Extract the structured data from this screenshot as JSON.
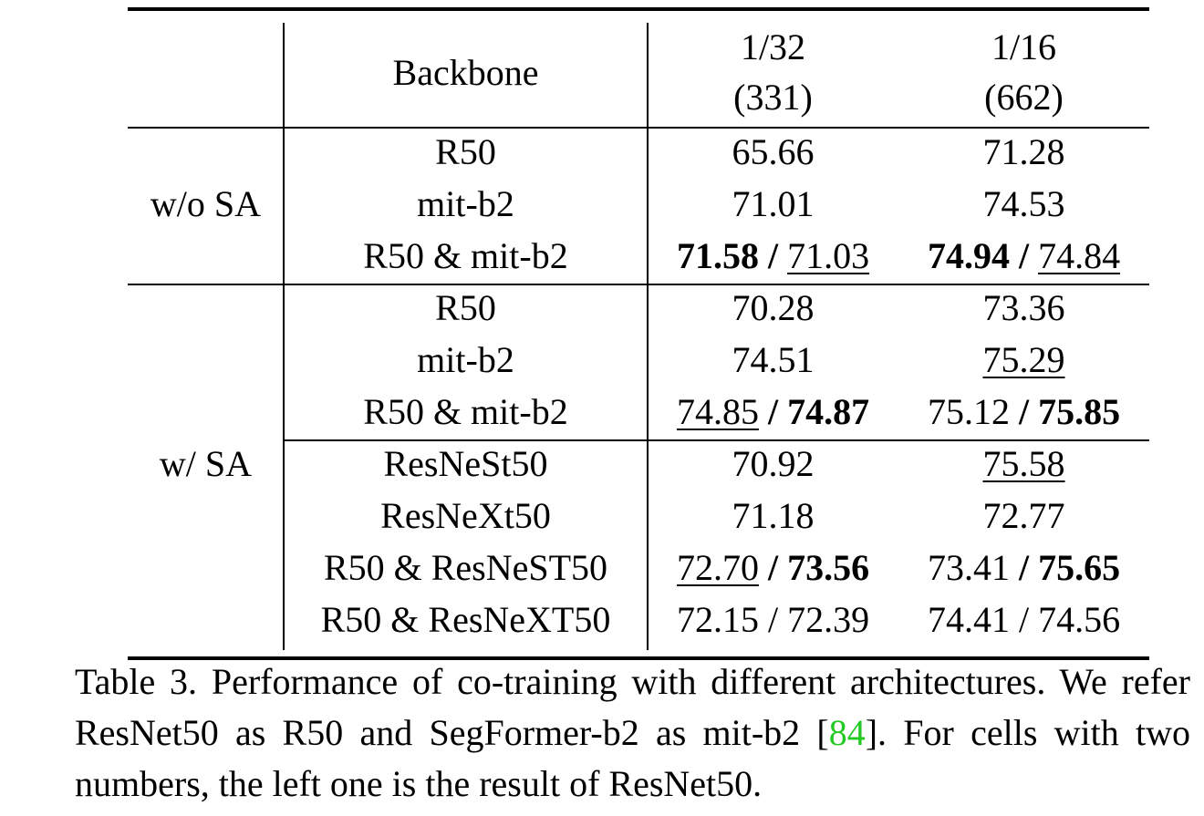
{
  "table": {
    "header": {
      "backbone": "Backbone",
      "columns": [
        [
          "1/32",
          "(331)"
        ],
        [
          "1/16",
          "(662)"
        ]
      ]
    },
    "separator": "/",
    "groups": [
      {
        "label": "w/o SA",
        "sections": [
          [
            {
              "backbone": "R50",
              "cells": [
                [
                  {
                    "text": "65.66"
                  }
                ],
                [
                  {
                    "text": "71.28"
                  }
                ]
              ]
            },
            {
              "backbone": "mit-b2",
              "cells": [
                [
                  {
                    "text": "71.01"
                  }
                ],
                [
                  {
                    "text": "74.53"
                  }
                ]
              ]
            },
            {
              "backbone": "R50 & mit-b2",
              "cells": [
                [
                  {
                    "text": "71.58",
                    "bold": true
                  },
                  {
                    "text": "71.03",
                    "underline": true
                  }
                ],
                [
                  {
                    "text": "74.94",
                    "bold": true
                  },
                  {
                    "text": "74.84",
                    "underline": true
                  }
                ]
              ]
            }
          ]
        ]
      },
      {
        "label": "w/ SA",
        "sections": [
          [
            {
              "backbone": "R50",
              "cells": [
                [
                  {
                    "text": "70.28"
                  }
                ],
                [
                  {
                    "text": "73.36"
                  }
                ]
              ]
            },
            {
              "backbone": "mit-b2",
              "cells": [
                [
                  {
                    "text": "74.51"
                  }
                ],
                [
                  {
                    "text": "75.29",
                    "underline": true
                  }
                ]
              ]
            },
            {
              "backbone": "R50 & mit-b2",
              "cells": [
                [
                  {
                    "text": "74.85",
                    "underline": true
                  },
                  {
                    "text": "74.87",
                    "bold": true
                  }
                ],
                [
                  {
                    "text": "75.12"
                  },
                  {
                    "text": "75.85",
                    "bold": true
                  }
                ]
              ]
            }
          ],
          [
            {
              "backbone": "ResNeSt50",
              "cells": [
                [
                  {
                    "text": "70.92"
                  }
                ],
                [
                  {
                    "text": "75.58",
                    "underline": true
                  }
                ]
              ]
            },
            {
              "backbone": "ResNeXt50",
              "cells": [
                [
                  {
                    "text": "71.18"
                  }
                ],
                [
                  {
                    "text": "72.77"
                  }
                ]
              ]
            },
            {
              "backbone": "R50 & ResNeST50",
              "cells": [
                [
                  {
                    "text": "72.70",
                    "underline": true
                  },
                  {
                    "text": "73.56",
                    "bold": true
                  }
                ],
                [
                  {
                    "text": "73.41"
                  },
                  {
                    "text": "75.65",
                    "bold": true
                  }
                ]
              ]
            },
            {
              "backbone": "R50 & ResNeXT50",
              "cells": [
                [
                  {
                    "text": "72.15"
                  },
                  {
                    "text": "72.39"
                  }
                ],
                [
                  {
                    "text": "74.41"
                  },
                  {
                    "text": "74.56"
                  }
                ]
              ]
            }
          ]
        ]
      }
    ]
  },
  "caption": {
    "parts": [
      {
        "text": "Table 3. Performance of co-training with different architectures. We refer ResNet50 as R50 and SegFormer-b2 as mit-b2 ["
      },
      {
        "text": "84",
        "link": true
      },
      {
        "text": "]. For cells with two numbers, the left one is the result of ResNet50."
      }
    ]
  }
}
